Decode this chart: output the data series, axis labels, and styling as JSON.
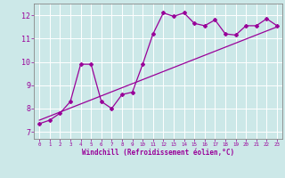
{
  "x_data": [
    0,
    1,
    2,
    3,
    4,
    5,
    6,
    7,
    8,
    9,
    10,
    11,
    12,
    13,
    14,
    15,
    16,
    17,
    18,
    19,
    20,
    21,
    22,
    23
  ],
  "y_data": [
    7.35,
    7.5,
    7.8,
    8.3,
    9.9,
    9.9,
    8.3,
    8.0,
    8.6,
    8.7,
    9.9,
    11.2,
    12.1,
    11.95,
    12.1,
    11.65,
    11.55,
    11.8,
    11.2,
    11.15,
    11.55,
    11.55,
    11.85,
    11.55
  ],
  "line_color": "#990099",
  "trend_color": "#990099",
  "bg_color": "#cce8e8",
  "grid_color": "#ffffff",
  "xlabel": "Windchill (Refroidissement éolien,°C)",
  "xlim": [
    -0.5,
    23.5
  ],
  "ylim": [
    6.7,
    12.5
  ],
  "yticks": [
    7,
    8,
    9,
    10,
    11,
    12
  ],
  "xticks": [
    0,
    1,
    2,
    3,
    4,
    5,
    6,
    7,
    8,
    9,
    10,
    11,
    12,
    13,
    14,
    15,
    16,
    17,
    18,
    19,
    20,
    21,
    22,
    23
  ],
  "trend_x": [
    0,
    23
  ],
  "trend_y": [
    7.5,
    11.5
  ]
}
